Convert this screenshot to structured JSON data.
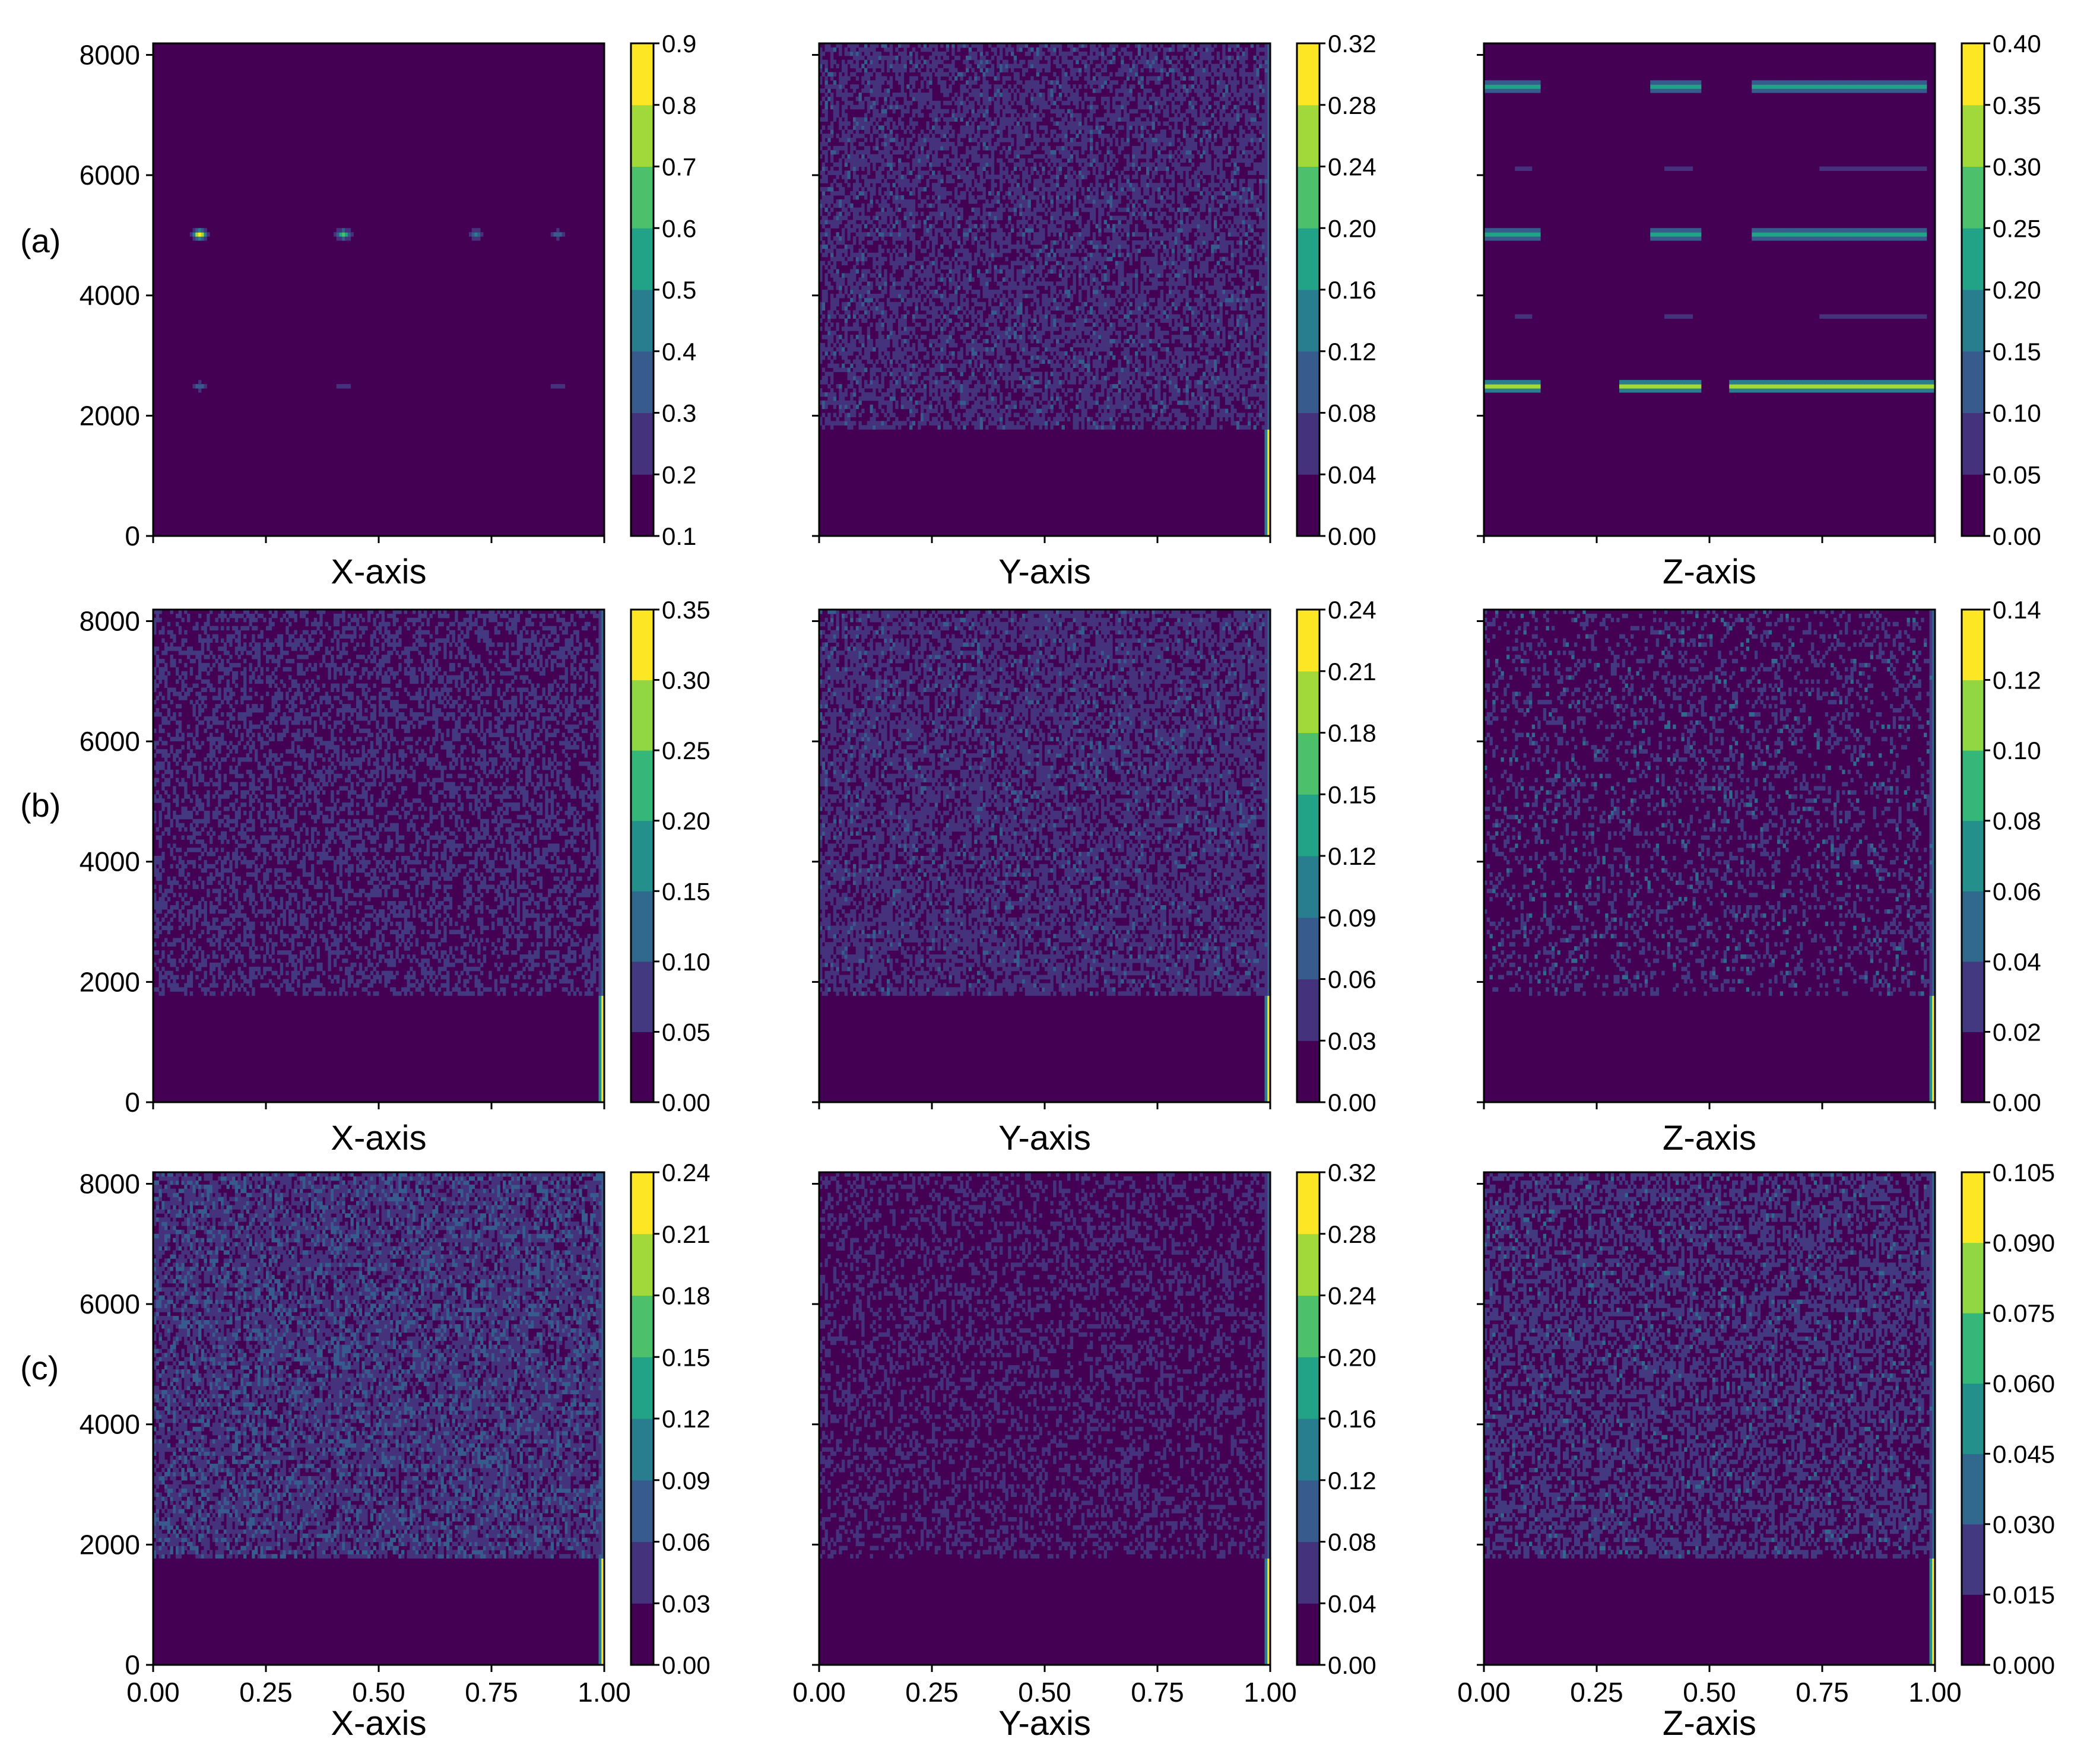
{
  "figure": {
    "row_labels": [
      "(a)",
      "(b)",
      "(c)"
    ]
  },
  "chart_data": [
    {
      "panel": "a-x",
      "type": "heatmap",
      "xlabel": "X-axis",
      "ylabel": "",
      "xlim": [
        0,
        1
      ],
      "ylim": [
        0,
        8192
      ],
      "yticks": [
        "0",
        "2000",
        "4000",
        "6000",
        "8000"
      ],
      "xticks": [],
      "colorbar": {
        "ticks": [
          "0.1",
          "0.2",
          "0.3",
          "0.4",
          "0.5",
          "0.6",
          "0.7",
          "0.8",
          "0.9"
        ],
        "range": [
          0.1,
          0.9
        ],
        "levels": 8,
        "colormap": "viridis"
      },
      "pattern": {
        "background": 0.1,
        "active_from_y": 0,
        "noise_density": 0.0,
        "features": [
          {
            "kind": "blob",
            "x": 0.1,
            "y": 5000,
            "value": 0.85
          },
          {
            "kind": "blob",
            "x": 0.42,
            "y": 5000,
            "value": 0.6
          },
          {
            "kind": "blob",
            "x": 0.72,
            "y": 5050,
            "value": 0.4
          },
          {
            "kind": "blob",
            "x": 0.9,
            "y": 5000,
            "value": 0.35
          },
          {
            "kind": "blob",
            "x": 0.1,
            "y": 2500,
            "value": 0.35
          },
          {
            "kind": "blob",
            "x": 0.42,
            "y": 2500,
            "value": 0.3
          },
          {
            "kind": "blob",
            "x": 0.9,
            "y": 2500,
            "value": 0.3
          }
        ]
      }
    },
    {
      "panel": "a-y",
      "type": "heatmap",
      "xlabel": "Y-axis",
      "ylabel": "",
      "xlim": [
        0,
        1
      ],
      "ylim": [
        0,
        8192
      ],
      "yticks": [],
      "xticks": [],
      "colorbar": {
        "ticks": [
          "0.00",
          "0.04",
          "0.08",
          "0.12",
          "0.16",
          "0.20",
          "0.24",
          "0.28",
          "0.32"
        ],
        "range": [
          0,
          0.32
        ],
        "levels": 8,
        "colormap": "viridis"
      },
      "pattern": {
        "background": 0.01,
        "active_from_y": 1800,
        "noise_density": 0.55,
        "noise_level": 0.06,
        "edge_value": 0.3
      }
    },
    {
      "panel": "a-z",
      "type": "heatmap",
      "xlabel": "Z-axis",
      "ylabel": "",
      "xlim": [
        0,
        1
      ],
      "ylim": [
        0,
        8192
      ],
      "yticks": [],
      "xticks": [],
      "colorbar": {
        "ticks": [
          "0.00",
          "0.05",
          "0.10",
          "0.15",
          "0.20",
          "0.25",
          "0.30",
          "0.35",
          "0.40"
        ],
        "range": [
          0,
          0.4
        ],
        "levels": 8,
        "colormap": "viridis"
      },
      "pattern": {
        "background": 0.01,
        "active_from_y": 0,
        "noise_density": 0.0,
        "features": [
          {
            "kind": "band",
            "y": 2500,
            "value": 0.35,
            "x_ranges": [
              [
                0.0,
                0.12
              ],
              [
                0.3,
                0.48
              ],
              [
                0.55,
                1.0
              ]
            ]
          },
          {
            "kind": "band",
            "y": 5050,
            "value": 0.22,
            "x_ranges": [
              [
                0.0,
                0.12
              ],
              [
                0.37,
                0.48
              ],
              [
                0.6,
                0.98
              ]
            ]
          },
          {
            "kind": "band",
            "y": 7500,
            "value": 0.22,
            "x_ranges": [
              [
                0.0,
                0.12
              ],
              [
                0.37,
                0.48
              ],
              [
                0.6,
                0.98
              ]
            ]
          },
          {
            "kind": "band",
            "y": 3650,
            "value": 0.09,
            "x_ranges": [
              [
                0.07,
                0.1
              ],
              [
                0.4,
                0.46
              ],
              [
                0.75,
                0.98
              ]
            ]
          },
          {
            "kind": "band",
            "y": 6150,
            "value": 0.09,
            "x_ranges": [
              [
                0.07,
                0.1
              ],
              [
                0.4,
                0.46
              ],
              [
                0.75,
                0.98
              ]
            ]
          }
        ]
      }
    },
    {
      "panel": "b-x",
      "type": "heatmap",
      "xlabel": "X-axis",
      "ylabel": "",
      "xlim": [
        0,
        1
      ],
      "ylim": [
        0,
        8192
      ],
      "yticks": [
        "0",
        "2000",
        "4000",
        "6000",
        "8000"
      ],
      "xticks": [],
      "colorbar": {
        "ticks": [
          "0.00",
          "0.05",
          "0.10",
          "0.15",
          "0.20",
          "0.25",
          "0.30",
          "0.35"
        ],
        "range": [
          0,
          0.35
        ],
        "levels": 7,
        "colormap": "viridis"
      },
      "pattern": {
        "background": 0.02,
        "active_from_y": 1800,
        "noise_density": 0.4,
        "noise_level": 0.07,
        "edge_value": 0.33
      }
    },
    {
      "panel": "b-y",
      "type": "heatmap",
      "xlabel": "Y-axis",
      "ylabel": "",
      "xlim": [
        0,
        1
      ],
      "ylim": [
        0,
        8192
      ],
      "yticks": [],
      "xticks": [],
      "colorbar": {
        "ticks": [
          "0.00",
          "0.03",
          "0.06",
          "0.09",
          "0.12",
          "0.15",
          "0.18",
          "0.21",
          "0.24"
        ],
        "range": [
          0,
          0.24
        ],
        "levels": 8,
        "colormap": "viridis"
      },
      "pattern": {
        "background": 0.01,
        "active_from_y": 1800,
        "noise_density": 0.6,
        "noise_level": 0.045,
        "edge_value": 0.22
      }
    },
    {
      "panel": "b-z",
      "type": "heatmap",
      "xlabel": "Z-axis",
      "ylabel": "",
      "xlim": [
        0,
        1
      ],
      "ylim": [
        0,
        8192
      ],
      "yticks": [],
      "xticks": [],
      "colorbar": {
        "ticks": [
          "0.00",
          "0.02",
          "0.04",
          "0.06",
          "0.08",
          "0.10",
          "0.12",
          "0.14"
        ],
        "range": [
          0,
          0.14
        ],
        "levels": 7,
        "colormap": "viridis"
      },
      "pattern": {
        "background": 0.01,
        "active_from_y": 1800,
        "noise_density": 0.22,
        "noise_level": 0.03,
        "edge_value": 0.13
      }
    },
    {
      "panel": "c-x",
      "type": "heatmap",
      "xlabel": "X-axis",
      "ylabel": "",
      "xlim": [
        0,
        1
      ],
      "ylim": [
        0,
        8192
      ],
      "yticks": [
        "0",
        "2000",
        "4000",
        "6000",
        "8000"
      ],
      "xticks": [
        "0.00",
        "0.25",
        "0.50",
        "0.75",
        "1.00"
      ],
      "colorbar": {
        "ticks": [
          "0.00",
          "0.03",
          "0.06",
          "0.09",
          "0.12",
          "0.15",
          "0.18",
          "0.21",
          "0.24"
        ],
        "range": [
          0,
          0.24
        ],
        "levels": 8,
        "colormap": "viridis"
      },
      "pattern": {
        "background": 0.015,
        "active_from_y": 1800,
        "noise_density": 0.7,
        "noise_level": 0.05,
        "edge_value": 0.22
      }
    },
    {
      "panel": "c-y",
      "type": "heatmap",
      "xlabel": "Y-axis",
      "ylabel": "",
      "xlim": [
        0,
        1
      ],
      "ylim": [
        0,
        8192
      ],
      "yticks": [],
      "xticks": [
        "0.00",
        "0.25",
        "0.50",
        "0.75",
        "1.00"
      ],
      "colorbar": {
        "ticks": [
          "0.00",
          "0.04",
          "0.08",
          "0.12",
          "0.16",
          "0.20",
          "0.24",
          "0.28",
          "0.32"
        ],
        "range": [
          0,
          0.32
        ],
        "levels": 8,
        "colormap": "viridis"
      },
      "pattern": {
        "background": 0.01,
        "active_from_y": 1800,
        "noise_density": 0.3,
        "noise_level": 0.05,
        "edge_value": 0.3
      }
    },
    {
      "panel": "c-z",
      "type": "heatmap",
      "xlabel": "Z-axis",
      "ylabel": "",
      "xlim": [
        0,
        1
      ],
      "ylim": [
        0,
        8192
      ],
      "yticks": [],
      "xticks": [
        "0.00",
        "0.25",
        "0.50",
        "0.75",
        "1.00"
      ],
      "colorbar": {
        "ticks": [
          "0.000",
          "0.015",
          "0.030",
          "0.045",
          "0.060",
          "0.075",
          "0.090",
          "0.105"
        ],
        "range": [
          0,
          0.105
        ],
        "levels": 7,
        "colormap": "viridis"
      },
      "pattern": {
        "background": 0.007,
        "active_from_y": 1800,
        "noise_density": 0.5,
        "noise_level": 0.022,
        "edge_value": 0.1
      }
    }
  ]
}
